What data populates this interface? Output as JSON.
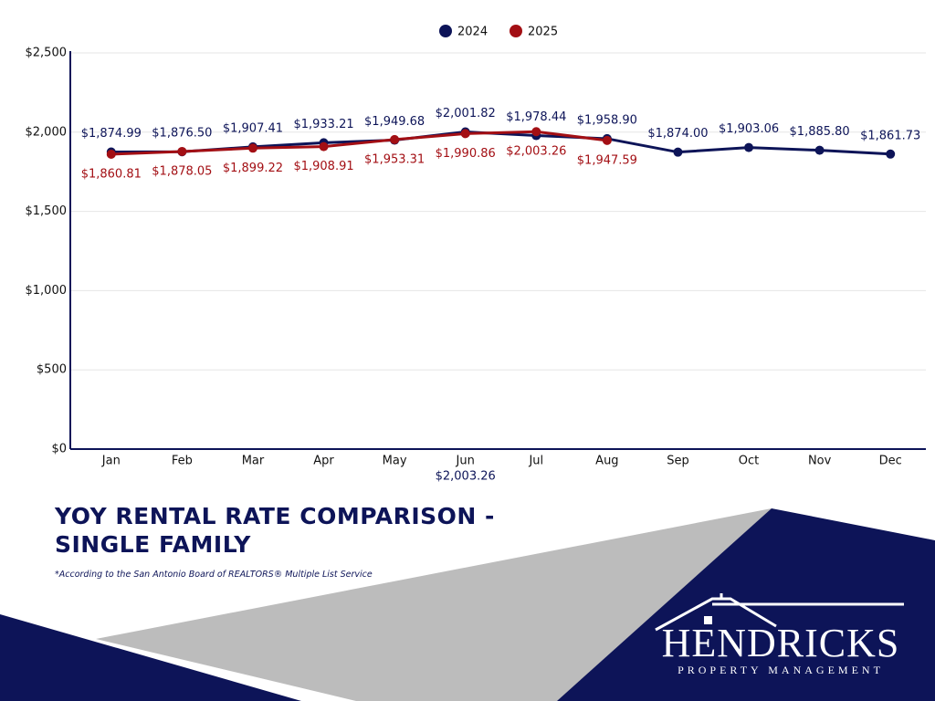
{
  "chart_data": {
    "type": "line",
    "categories": [
      "Jan",
      "Feb",
      "Mar",
      "Apr",
      "May",
      "Jun",
      "Jul",
      "Aug",
      "Sep",
      "Oct",
      "Nov",
      "Dec"
    ],
    "series": [
      {
        "name": "2024",
        "color": "#0d1458",
        "values": [
          1874.99,
          1876.5,
          1907.41,
          1933.21,
          1949.68,
          2001.82,
          1978.44,
          1958.9,
          1874.0,
          1903.06,
          1885.8,
          1861.73
        ],
        "value_labels": [
          "$1,874.99",
          "$1,876.50",
          "$1,907.41",
          "$1,933.21",
          "$1,949.68",
          "$2,001.82",
          "$1,978.44",
          "$1,958.90",
          "$1,874.00",
          "$1,903.06",
          "$1,885.80",
          "$1,861.73"
        ]
      },
      {
        "name": "2025",
        "color": "#a30f14",
        "values": [
          1860.81,
          1878.05,
          1899.22,
          1908.91,
          1953.31,
          1990.86,
          2003.26,
          1947.59,
          null,
          null,
          null,
          null
        ],
        "value_labels": [
          "$1,860.81",
          "$1,878.05",
          "$1,899.22",
          "$1,908.91",
          "$1,953.31",
          "$1,990.86",
          "$2,003.26",
          "$1,947.59",
          null,
          null,
          null,
          null
        ]
      }
    ],
    "ylim": [
      0,
      2500
    ],
    "yticks": [
      {
        "value": 0,
        "label": "$0"
      },
      {
        "value": 500,
        "label": "$500"
      },
      {
        "value": 1000,
        "label": "$1,000"
      },
      {
        "value": 1500,
        "label": "$1,500"
      },
      {
        "value": 2000,
        "label": "$2,000"
      },
      {
        "value": 2500,
        "label": "$2,500"
      }
    ],
    "annotation": "$2,003.26",
    "grid": true,
    "legend": "top"
  },
  "title": "YOY RENTAL RATE COMPARISON - SINGLE FAMILY",
  "footnote": "*According to the San Antonio Board of REALTORS® Multiple List Service",
  "logo": {
    "name": "HENDRICKS",
    "tagline": "PROPERTY MANAGEMENT"
  }
}
